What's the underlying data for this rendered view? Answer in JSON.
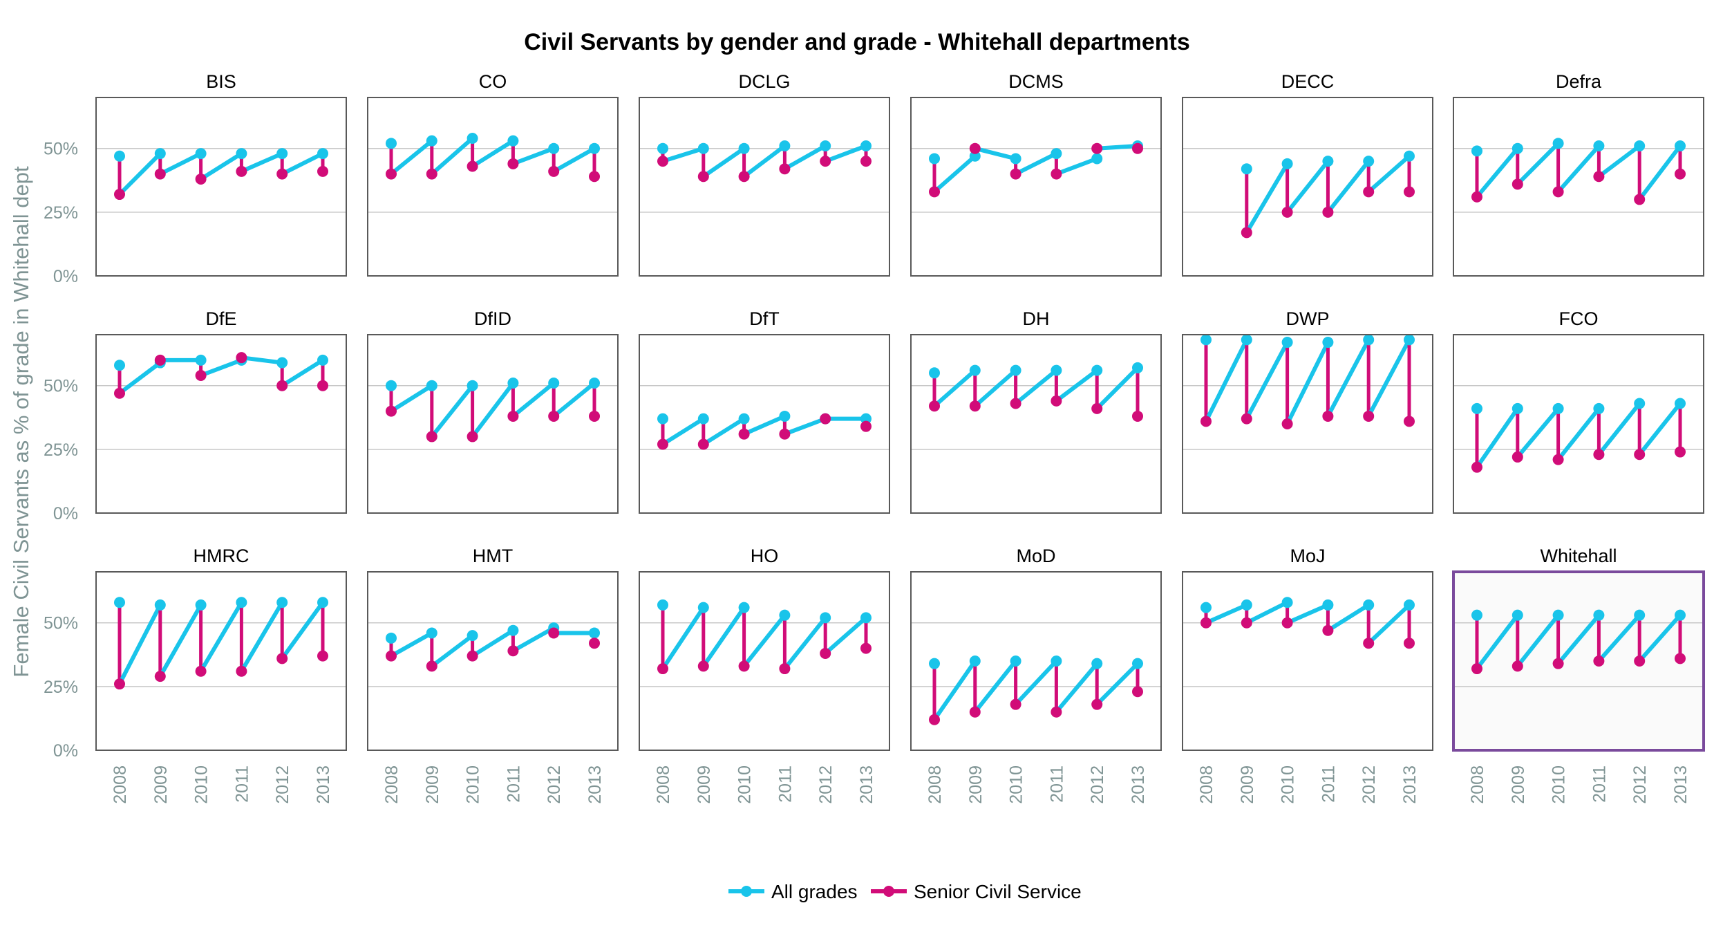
{
  "chart_data": {
    "type": "line",
    "title": "Civil Servants by gender and grade - Whitehall departments",
    "ylabel": "Female Civil Servants as % of grade in Whitehall dept",
    "xlabel": "",
    "ylim": [
      0,
      70
    ],
    "yticks": [
      0,
      25,
      50
    ],
    "ytick_labels": [
      "0%",
      "25%",
      "50%"
    ],
    "x": [
      "2008",
      "2009",
      "2010",
      "2011",
      "2012",
      "2013"
    ],
    "grid": "horizontal",
    "legend_position": "bottom-center",
    "legend": [
      "All grades",
      "Senior Civil Service"
    ],
    "colors": {
      "All grades": "#19c4ea",
      "Senior Civil Service": "#d10c78",
      "highlight_frame": "#7a4a9c"
    },
    "highlighted_panel": "Whitehall",
    "panels": [
      {
        "name": "BIS",
        "all": [
          47,
          48,
          48,
          48,
          48,
          48
        ],
        "scs": [
          32,
          40,
          38,
          41,
          40,
          41
        ]
      },
      {
        "name": "CO",
        "all": [
          52,
          53,
          54,
          53,
          50,
          50
        ],
        "scs": [
          40,
          40,
          43,
          44,
          41,
          39
        ]
      },
      {
        "name": "DCLG",
        "all": [
          50,
          50,
          50,
          51,
          51,
          51
        ],
        "scs": [
          45,
          39,
          39,
          42,
          45,
          45
        ]
      },
      {
        "name": "DCMS",
        "all": [
          46,
          47,
          46,
          48,
          46,
          51
        ],
        "scs": [
          33,
          50,
          40,
          40,
          50,
          50
        ]
      },
      {
        "name": "DECC",
        "all": [
          null,
          42,
          44,
          45,
          45,
          47
        ],
        "scs": [
          null,
          17,
          25,
          25,
          33,
          33
        ]
      },
      {
        "name": "Defra",
        "all": [
          49,
          50,
          52,
          51,
          51,
          51
        ],
        "scs": [
          31,
          36,
          33,
          39,
          30,
          40
        ]
      },
      {
        "name": "DfE",
        "all": [
          58,
          59,
          60,
          60,
          59,
          60
        ],
        "scs": [
          47,
          60,
          54,
          61,
          50,
          50
        ]
      },
      {
        "name": "DfID",
        "all": [
          50,
          50,
          50,
          51,
          51,
          51
        ],
        "scs": [
          40,
          30,
          30,
          38,
          38,
          38
        ]
      },
      {
        "name": "DfT",
        "all": [
          37,
          37,
          37,
          38,
          37,
          37
        ],
        "scs": [
          27,
          27,
          31,
          31,
          37,
          34
        ]
      },
      {
        "name": "DH",
        "all": [
          55,
          56,
          56,
          56,
          56,
          57
        ],
        "scs": [
          42,
          42,
          43,
          44,
          41,
          38
        ]
      },
      {
        "name": "DWP",
        "all": [
          68,
          68,
          67,
          67,
          68,
          68
        ],
        "scs": [
          36,
          37,
          35,
          38,
          38,
          36
        ]
      },
      {
        "name": "FCO",
        "all": [
          41,
          41,
          41,
          41,
          43,
          43
        ],
        "scs": [
          18,
          22,
          21,
          23,
          23,
          24
        ]
      },
      {
        "name": "HMRC",
        "all": [
          58,
          57,
          57,
          58,
          58,
          58
        ],
        "scs": [
          26,
          29,
          31,
          31,
          36,
          37
        ]
      },
      {
        "name": "HMT",
        "all": [
          44,
          46,
          45,
          47,
          48,
          46
        ],
        "scs": [
          37,
          33,
          37,
          39,
          46,
          42
        ]
      },
      {
        "name": "HO",
        "all": [
          57,
          56,
          56,
          53,
          52,
          52
        ],
        "scs": [
          32,
          33,
          33,
          32,
          38,
          40
        ]
      },
      {
        "name": "MoD",
        "all": [
          34,
          35,
          35,
          35,
          34,
          34
        ],
        "scs": [
          12,
          15,
          18,
          15,
          18,
          23
        ]
      },
      {
        "name": "MoJ",
        "all": [
          56,
          57,
          58,
          57,
          57,
          57
        ],
        "scs": [
          50,
          50,
          50,
          47,
          42,
          42
        ]
      },
      {
        "name": "Whitehall",
        "all": [
          53,
          53,
          53,
          53,
          53,
          53
        ],
        "scs": [
          32,
          33,
          34,
          35,
          35,
          36
        ]
      }
    ]
  }
}
